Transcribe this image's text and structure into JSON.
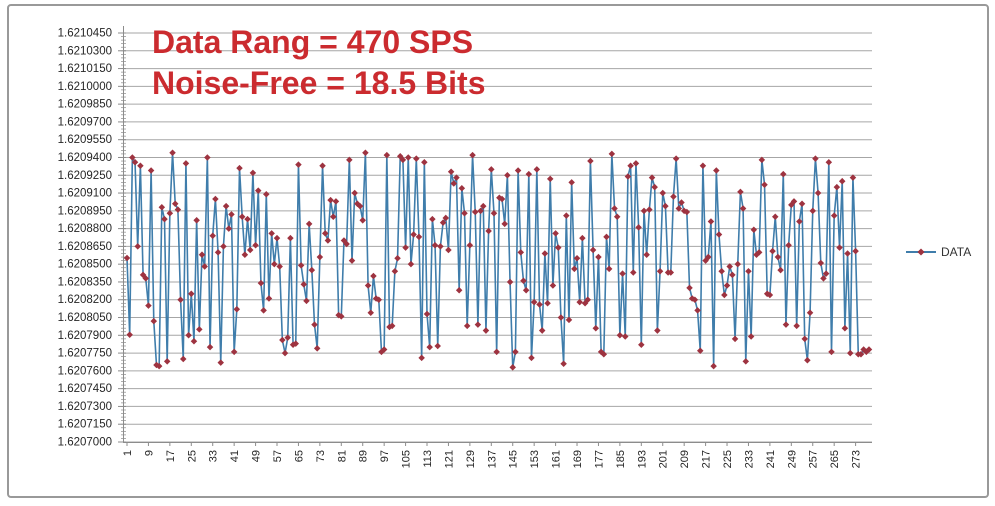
{
  "chart_data": {
    "type": "line",
    "title": "",
    "xlabel": "",
    "ylabel": "",
    "grid": true,
    "legend_position": "right",
    "legend": {
      "label": "DATA"
    },
    "annotations": [
      {
        "text": "Data Rang = 470 SPS"
      },
      {
        "text": "Noise-Free = 18.5 Bits"
      }
    ],
    "colors": {
      "line": "#3f7dab",
      "marker": "#9e3340",
      "annotation": "#cb2b2f",
      "gridline": "#a6a6a6",
      "axis": "#8c8c8c",
      "tick_text": "#262626"
    },
    "y": {
      "min": 1.6207,
      "max": 1.621045,
      "major_step": 1.5e-05,
      "minor_per_major": 5,
      "tick_labels": [
        "1.6210450",
        "1.6210300",
        "1.6210150",
        "1.6210000",
        "1.6209850",
        "1.6209700",
        "1.6209550",
        "1.6209400",
        "1.6209250",
        "1.6209100",
        "1.6208950",
        "1.6208800",
        "1.6208650",
        "1.6208500",
        "1.6208350",
        "1.6208200",
        "1.6208050",
        "1.6207900",
        "1.6207750",
        "1.6207600",
        "1.6207450",
        "1.6207300",
        "1.6207150",
        "1.6207000"
      ]
    },
    "x": {
      "label_interval": 8,
      "tick_labels": [
        "1",
        "9",
        "17",
        "25",
        "33",
        "41",
        "49",
        "57",
        "65",
        "73",
        "81",
        "89",
        "97",
        "105",
        "113",
        "121",
        "129",
        "137",
        "145",
        "153",
        "161",
        "169",
        "177",
        "185",
        "193",
        "201",
        "209",
        "217",
        "225",
        "233",
        "241",
        "249",
        "257",
        "265",
        "273"
      ]
    },
    "series": [
      {
        "name": "DATA",
        "values": [
          1.6208552,
          1.6207905,
          1.62094,
          1.620936,
          1.620865,
          1.620933,
          1.620841,
          1.620838,
          1.620815,
          1.620929,
          1.620802,
          1.620765,
          1.620764,
          1.620898,
          1.620888,
          1.620768,
          1.620893,
          1.620944,
          1.620901,
          1.620896,
          1.62082,
          1.62077,
          1.620935,
          1.62079,
          1.620825,
          1.620785,
          1.620887,
          1.620795,
          1.620858,
          1.620848,
          1.62094,
          1.62078,
          1.620874,
          1.620905,
          1.62086,
          1.620767,
          1.620865,
          1.620899,
          1.62088,
          1.620892,
          1.620776,
          1.620812,
          1.620931,
          1.62089,
          1.620858,
          1.620888,
          1.620862,
          1.620927,
          1.620866,
          1.620912,
          1.620834,
          1.620811,
          1.620909,
          1.620821,
          1.620876,
          1.62085,
          1.620872,
          1.620848,
          1.620786,
          1.620775,
          1.620788,
          1.620872,
          1.620782,
          1.620783,
          1.620934,
          1.620849,
          1.620833,
          1.620819,
          1.620884,
          1.620845,
          1.620799,
          1.620779,
          1.620856,
          1.620933,
          1.620876,
          1.62087,
          1.620904,
          1.62089,
          1.620903,
          1.620807,
          1.620806,
          1.62087,
          1.620867,
          1.620938,
          1.620853,
          1.62091,
          1.620901,
          1.620899,
          1.620887,
          1.620944,
          1.620832,
          1.620809,
          1.62084,
          1.620821,
          1.62082,
          1.620776,
          1.620778,
          1.620942,
          1.620797,
          1.620798,
          1.620844,
          1.620855,
          1.620941,
          1.620938,
          1.620864,
          1.62094,
          1.62085,
          1.620875,
          1.620939,
          1.620873,
          1.620771,
          1.620936,
          1.620808,
          1.62078,
          1.620888,
          1.620866,
          1.620781,
          1.620865,
          1.620885,
          1.620889,
          1.620862,
          1.620928,
          1.620918,
          1.620923,
          1.620828,
          1.620914,
          1.620893,
          1.620798,
          1.620866,
          1.620942,
          1.620894,
          1.620799,
          1.620895,
          1.620899,
          1.620794,
          1.620878,
          1.62093,
          1.620893,
          1.620776,
          1.620906,
          1.620905,
          1.620884,
          1.620925,
          1.620835,
          1.620763,
          1.620776,
          1.620929,
          1.62086,
          1.620836,
          1.620828,
          1.620926,
          1.620771,
          1.620818,
          1.62093,
          1.620816,
          1.620794,
          1.620859,
          1.620817,
          1.620922,
          1.620832,
          1.620876,
          1.620864,
          1.620805,
          1.620766,
          1.620891,
          1.620803,
          1.620919,
          1.620846,
          1.620855,
          1.620818,
          1.620872,
          1.620817,
          1.62082,
          1.620937,
          1.620862,
          1.620796,
          1.620856,
          1.620776,
          1.620774,
          1.620873,
          1.620846,
          1.620943,
          1.620897,
          1.62089,
          1.62079,
          1.620842,
          1.620789,
          1.620924,
          1.620933,
          1.620843,
          1.620935,
          1.620881,
          1.620782,
          1.620895,
          1.620858,
          1.620896,
          1.620923,
          1.620915,
          1.620794,
          1.620844,
          1.62091,
          1.620899,
          1.620843,
          1.620843,
          1.620907,
          1.620939,
          1.620897,
          1.620902,
          1.620895,
          1.620894,
          1.62083,
          1.620821,
          1.62082,
          1.620811,
          1.620777,
          1.620933,
          1.620853,
          1.620856,
          1.620886,
          1.620764,
          1.620929,
          1.620875,
          1.620844,
          1.620824,
          1.620832,
          1.620848,
          1.620841,
          1.620787,
          1.62085,
          1.620911,
          1.620897,
          1.620768,
          1.620844,
          1.620789,
          1.620879,
          1.620858,
          1.62086,
          1.620938,
          1.620917,
          1.620825,
          1.620824,
          1.620861,
          1.62089,
          1.620856,
          1.620845,
          1.620926,
          1.620799,
          1.620866,
          1.6209,
          1.620903,
          1.620798,
          1.620886,
          1.620901,
          1.620787,
          1.620769,
          1.620809,
          1.620895,
          1.620939,
          1.62091,
          1.620851,
          1.620838,
          1.620842,
          1.620936,
          1.620776,
          1.620891,
          1.620915,
          1.620864,
          1.62092,
          1.620796,
          1.620859,
          1.620775,
          1.620923,
          1.620861,
          1.620774,
          1.620774,
          1.620778,
          1.620776,
          1.620778
        ]
      }
    ]
  }
}
